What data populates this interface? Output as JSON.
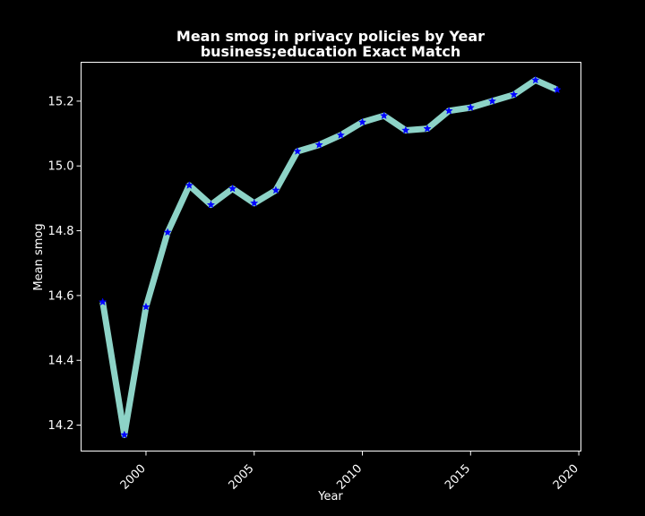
{
  "chart_data": {
    "type": "line",
    "title_line1": "Mean smog in privacy policies by Year",
    "title_line2": "business;education Exact Match",
    "xlabel": "Year",
    "ylabel": "Mean smog",
    "xlim": [
      1997.0,
      2020.1
    ],
    "ylim": [
      14.12,
      15.32
    ],
    "x_ticks": [
      2000,
      2005,
      2010,
      2015,
      2020
    ],
    "x_tick_labels": [
      "2000",
      "2005",
      "2010",
      "2015",
      "2020"
    ],
    "y_ticks": [
      14.2,
      14.4,
      14.6,
      14.8,
      15.0,
      15.2
    ],
    "y_tick_labels": [
      "14.2",
      "14.4",
      "14.6",
      "14.8",
      "15.0",
      "15.2"
    ],
    "grid": false,
    "series": [
      {
        "line_color": "#8dd3c7",
        "marker_color": "#0000ff",
        "marker": "star",
        "x": [
          1998,
          1999,
          2000,
          2001,
          2002,
          2003,
          2004,
          2005,
          2006,
          2007,
          2008,
          2009,
          2010,
          2011,
          2012,
          2013,
          2014,
          2015,
          2016,
          2017,
          2018,
          2019
        ],
        "values": [
          14.58,
          14.17,
          14.565,
          14.795,
          14.94,
          14.88,
          14.93,
          14.885,
          14.925,
          15.045,
          15.065,
          15.095,
          15.135,
          15.155,
          15.11,
          15.115,
          15.17,
          15.18,
          15.2,
          15.22,
          15.265,
          15.235
        ]
      }
    ]
  }
}
